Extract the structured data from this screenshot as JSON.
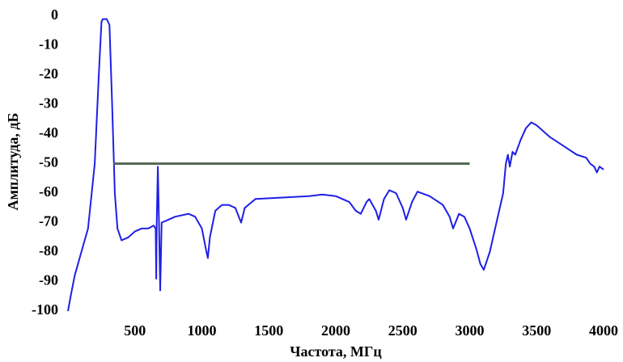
{
  "chart_data": {
    "type": "line",
    "x_label": "Частота, МГц",
    "y_label": "Амплитуда, дБ",
    "xlim": [
      0,
      4000
    ],
    "ylim": [
      -100,
      0
    ],
    "xticks": [
      500,
      1000,
      1500,
      2000,
      2500,
      3000,
      3500,
      4000
    ],
    "yticks": [
      0,
      -10,
      -20,
      -30,
      -40,
      -50,
      -60,
      -70,
      -80,
      -90,
      -100
    ],
    "series": [
      {
        "color": "#1f1fe6",
        "x": [
          0,
          20,
          50,
          100,
          150,
          200,
          230,
          250,
          260,
          290,
          310,
          330,
          350,
          370,
          400,
          450,
          500,
          550,
          600,
          640,
          655,
          659,
          663,
          671,
          680,
          689,
          700,
          750,
          800,
          900,
          950,
          1000,
          1030,
          1045,
          1060,
          1100,
          1150,
          1200,
          1250,
          1293,
          1320,
          1400,
          1600,
          1800,
          1900,
          2000,
          2100,
          2150,
          2187,
          2230,
          2250,
          2300,
          2320,
          2360,
          2400,
          2450,
          2500,
          2525,
          2570,
          2610,
          2700,
          2800,
          2850,
          2876,
          2920,
          2960,
          3000,
          3050,
          3080,
          3105,
          3120,
          3150,
          3200,
          3250,
          3270,
          3285,
          3300,
          3320,
          3340,
          3380,
          3420,
          3460,
          3500,
          3600,
          3700,
          3800,
          3870,
          3900,
          3930,
          3950,
          3970,
          4000
        ],
        "values": [
          -100,
          -95,
          -88,
          -80,
          -72,
          -50,
          -20,
          -2,
          -1,
          -1,
          -3,
          -30,
          -60,
          -72,
          -76,
          -75,
          -73,
          -72,
          -72,
          -71,
          -72,
          -89,
          -70,
          -51,
          -70,
          -93,
          -70,
          -69,
          -68,
          -67,
          -68,
          -72,
          -79,
          -82,
          -75,
          -66,
          -64,
          -64,
          -65,
          -70,
          -65,
          -62,
          -61.5,
          -61,
          -60.5,
          -61,
          -63,
          -66,
          -67,
          -63,
          -62,
          -66,
          -69,
          -62,
          -59,
          -60,
          -65,
          -69,
          -63,
          -59.5,
          -61,
          -64,
          -68,
          -72,
          -67,
          -68,
          -72,
          -79,
          -84,
          -86,
          -84,
          -80,
          -70,
          -60,
          -50,
          -47,
          -51,
          -46,
          -47,
          -42,
          -38,
          -36,
          -37,
          -41,
          -44,
          -47,
          -48,
          -50,
          -51,
          -53,
          -51,
          -52
        ]
      },
      {
        "color": "#556b55",
        "x": [
          340,
          3000
        ],
        "values": [
          -50,
          -50
        ]
      }
    ]
  }
}
